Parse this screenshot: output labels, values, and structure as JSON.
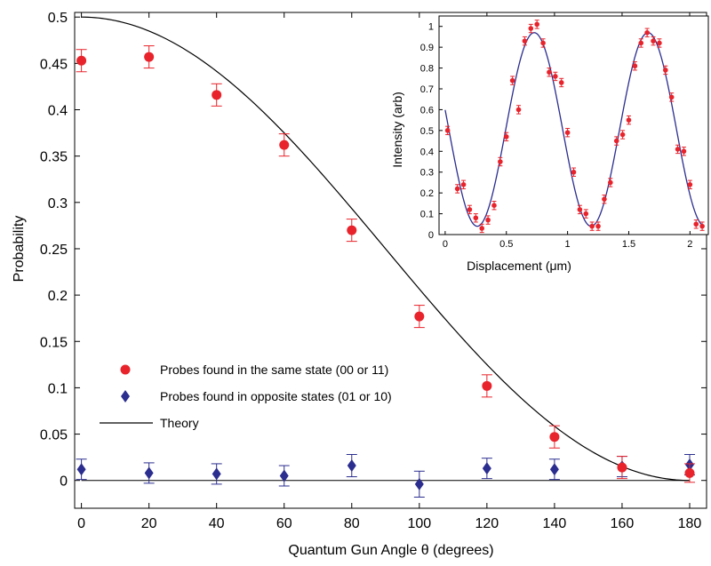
{
  "chart_data": [
    {
      "type": "scatter",
      "title": "",
      "xlabel": "Quantum Gun Angle θ (degrees)",
      "ylabel": "Probability",
      "xlim": [
        -2,
        185
      ],
      "ylim": [
        -0.03,
        0.505
      ],
      "x_ticks": [
        0,
        20,
        40,
        60,
        80,
        100,
        120,
        140,
        160,
        180
      ],
      "y_ticks": [
        0,
        0.05,
        0.1,
        0.15,
        0.2,
        0.25,
        0.3,
        0.35,
        0.4,
        0.45,
        0.5
      ],
      "x_tick_labels": [
        "0",
        "20",
        "40",
        "60",
        "80",
        "100",
        "120",
        "140",
        "160",
        "180"
      ],
      "y_tick_labels": [
        "0",
        "0.05",
        "0.1",
        "0.15",
        "0.2",
        "0.25",
        "0.3",
        "0.35",
        "0.4",
        "0.45",
        "0.5"
      ],
      "grid": false,
      "legend_position": "lower-left",
      "series": [
        {
          "name": "Probes found in the same state (00 or 11)",
          "marker": "circle",
          "color": "#e8232b",
          "x": [
            0,
            20,
            40,
            60,
            80,
            100,
            120,
            140,
            160,
            180
          ],
          "y": [
            0.453,
            0.457,
            0.416,
            0.362,
            0.27,
            0.177,
            0.102,
            0.047,
            0.014,
            0.008
          ],
          "err": [
            0.012,
            0.012,
            0.012,
            0.012,
            0.012,
            0.012,
            0.012,
            0.012,
            0.012,
            0.01
          ]
        },
        {
          "name": "Probes found in opposite states (01 or 10)",
          "marker": "diamond",
          "color": "#2b2d8f",
          "x": [
            0,
            20,
            40,
            60,
            80,
            100,
            120,
            140,
            160,
            180
          ],
          "y": [
            0.012,
            0.008,
            0.007,
            0.005,
            0.016,
            -0.004,
            0.013,
            0.012,
            0.015,
            0.017
          ],
          "err": [
            0.011,
            0.011,
            0.011,
            0.011,
            0.012,
            0.014,
            0.011,
            0.011,
            0.011,
            0.011
          ]
        },
        {
          "name": "Theory",
          "type": "line",
          "color": "#000000",
          "formula": "0.5*cos^2(θ/2)"
        }
      ]
    },
    {
      "type": "scatter",
      "title": "",
      "xlabel": "Displacement (μm)",
      "ylabel": "Intensity (arb)",
      "xlim": [
        -0.05,
        2.15
      ],
      "ylim": [
        0,
        1.05
      ],
      "x_ticks": [
        0,
        0.5,
        1,
        1.5,
        2
      ],
      "y_ticks": [
        0,
        0.1,
        0.2,
        0.3,
        0.4,
        0.5,
        0.6,
        0.7,
        0.8,
        0.9,
        1
      ],
      "x_tick_labels": [
        "0",
        "0.5",
        "1",
        "1.5",
        "2"
      ],
      "y_tick_labels": [
        "0",
        "0.1",
        "0.2",
        "0.3",
        "0.4",
        "0.5",
        "0.6",
        "0.7",
        "0.8",
        "0.9",
        "1"
      ],
      "grid": false,
      "series": [
        {
          "marker": "circle",
          "color": "#e8232b",
          "x": [
            0.02,
            0.1,
            0.15,
            0.2,
            0.25,
            0.3,
            0.35,
            0.4,
            0.45,
            0.5,
            0.55,
            0.6,
            0.65,
            0.7,
            0.75,
            0.8,
            0.85,
            0.9,
            0.95,
            1.0,
            1.05,
            1.1,
            1.15,
            1.2,
            1.25,
            1.3,
            1.35,
            1.4,
            1.45,
            1.5,
            1.55,
            1.6,
            1.65,
            1.7,
            1.75,
            1.8,
            1.85,
            1.9,
            1.95,
            2.0,
            2.05,
            2.1
          ],
          "y": [
            0.5,
            0.22,
            0.24,
            0.12,
            0.08,
            0.03,
            0.07,
            0.14,
            0.35,
            0.47,
            0.74,
            0.6,
            0.93,
            0.99,
            1.01,
            0.92,
            0.78,
            0.76,
            0.73,
            0.49,
            0.3,
            0.12,
            0.1,
            0.04,
            0.04,
            0.17,
            0.25,
            0.45,
            0.48,
            0.55,
            0.81,
            0.92,
            0.97,
            0.93,
            0.92,
            0.79,
            0.66,
            0.41,
            0.4,
            0.24,
            0.05,
            0.04
          ]
        },
        {
          "type": "line",
          "color": "#2b2d8f",
          "formula": "0.505 + 0.465*sin(2π(x-0.495)/0.93)"
        }
      ]
    }
  ]
}
